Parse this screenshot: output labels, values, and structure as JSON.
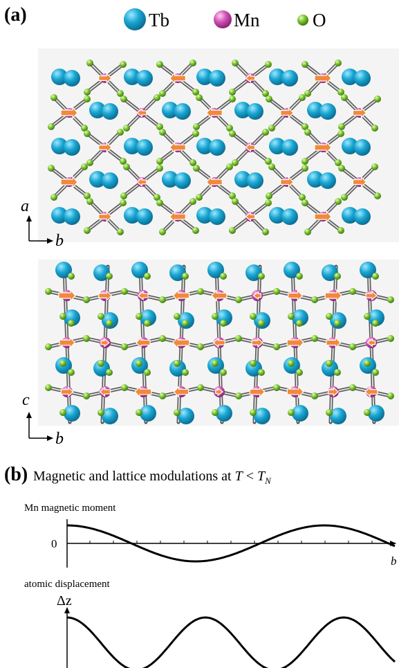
{
  "panel_a": {
    "label": "(a)",
    "legend": [
      {
        "label": "Tb"
      },
      {
        "label": "Mn"
      },
      {
        "label": "O"
      }
    ],
    "top_axes": {
      "vertical": "a",
      "horizontal": "b"
    },
    "bottom_axes": {
      "vertical": "c",
      "horizontal": "b"
    }
  },
  "panel_b": {
    "label": "(b)",
    "caption": {
      "text": "Magnetic and lattice modulations at ",
      "var": "T",
      "relation": " < ",
      "var2": "T",
      "subscript": "N"
    },
    "moment_plot": {
      "ylabel": "Mn magnetic moment",
      "zero": 0,
      "xlabel": "b"
    },
    "displacement_plot": {
      "title": "atomic displacement",
      "ylabel": "Δz"
    }
  }
}
